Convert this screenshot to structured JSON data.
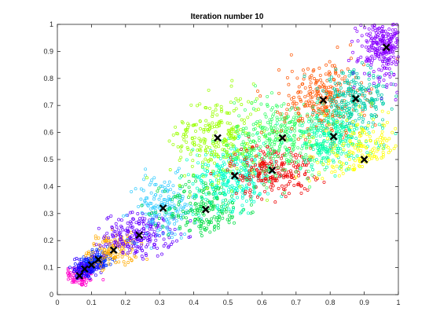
{
  "chart_data": {
    "type": "scatter",
    "title": "Iteration number 10",
    "xlabel": "",
    "ylabel": "",
    "xlim": [
      0,
      1
    ],
    "ylim": [
      0,
      1
    ],
    "grid": false,
    "legend": "none",
    "xticks": [
      "0",
      "0.1",
      "0.2",
      "0.3",
      "0.4",
      "0.5",
      "0.6",
      "0.7",
      "0.8",
      "0.9",
      "1"
    ],
    "yticks": [
      "0",
      "0.1",
      "0.2",
      "0.3",
      "0.4",
      "0.5",
      "0.6",
      "0.7",
      "0.8",
      "0.9",
      "1"
    ],
    "marker_colors": {
      "scatter_marker": "circle-open",
      "centroid_marker": "x",
      "centroid_color": "#000000"
    },
    "clusters": [
      {
        "centroid": [
          0.065,
          0.07
        ],
        "color": "#ff00cc",
        "spread": [
          0.025,
          0.02
        ],
        "count": 90
      },
      {
        "centroid": [
          0.08,
          0.095
        ],
        "color": "#0000ff",
        "spread": [
          0.02,
          0.02
        ],
        "count": 80
      },
      {
        "centroid": [
          0.1,
          0.11
        ],
        "color": "#3300ff",
        "spread": [
          0.02,
          0.02
        ],
        "count": 80
      },
      {
        "centroid": [
          0.12,
          0.13
        ],
        "color": "#0033ff",
        "spread": [
          0.02,
          0.02
        ],
        "count": 80
      },
      {
        "centroid": [
          0.165,
          0.165
        ],
        "color": "#ffaa00",
        "spread": [
          0.035,
          0.03
        ],
        "count": 130
      },
      {
        "centroid": [
          0.24,
          0.22
        ],
        "color": "#6600ff",
        "spread": [
          0.05,
          0.04
        ],
        "count": 220
      },
      {
        "centroid": [
          0.31,
          0.32
        ],
        "color": "#33ccff",
        "spread": [
          0.05,
          0.06
        ],
        "count": 180
      },
      {
        "centroid": [
          0.435,
          0.315
        ],
        "color": "#00dd44",
        "spread": [
          0.06,
          0.06
        ],
        "count": 220
      },
      {
        "centroid": [
          0.52,
          0.44
        ],
        "color": "#00ffcc",
        "spread": [
          0.06,
          0.06
        ],
        "count": 300
      },
      {
        "centroid": [
          0.47,
          0.58
        ],
        "color": "#99ff00",
        "spread": [
          0.07,
          0.08
        ],
        "count": 280
      },
      {
        "centroid": [
          0.63,
          0.46
        ],
        "color": "#ee0000",
        "spread": [
          0.06,
          0.05
        ],
        "count": 220
      },
      {
        "centroid": [
          0.66,
          0.58
        ],
        "color": "#33ff66",
        "spread": [
          0.07,
          0.07
        ],
        "count": 320
      },
      {
        "centroid": [
          0.78,
          0.72
        ],
        "color": "#ff5500",
        "spread": [
          0.06,
          0.07
        ],
        "count": 280
      },
      {
        "centroid": [
          0.81,
          0.585
        ],
        "color": "#00ffaa",
        "spread": [
          0.06,
          0.06
        ],
        "count": 280
      },
      {
        "centroid": [
          0.875,
          0.725
        ],
        "color": "#00ccaa",
        "spread": [
          0.05,
          0.05
        ],
        "count": 220
      },
      {
        "centroid": [
          0.9,
          0.5
        ],
        "color": "#ffff00",
        "spread": [
          0.06,
          0.07
        ],
        "count": 260
      },
      {
        "centroid": [
          0.965,
          0.915
        ],
        "color": "#8800ff",
        "spread": [
          0.04,
          0.06
        ],
        "count": 320
      }
    ]
  }
}
